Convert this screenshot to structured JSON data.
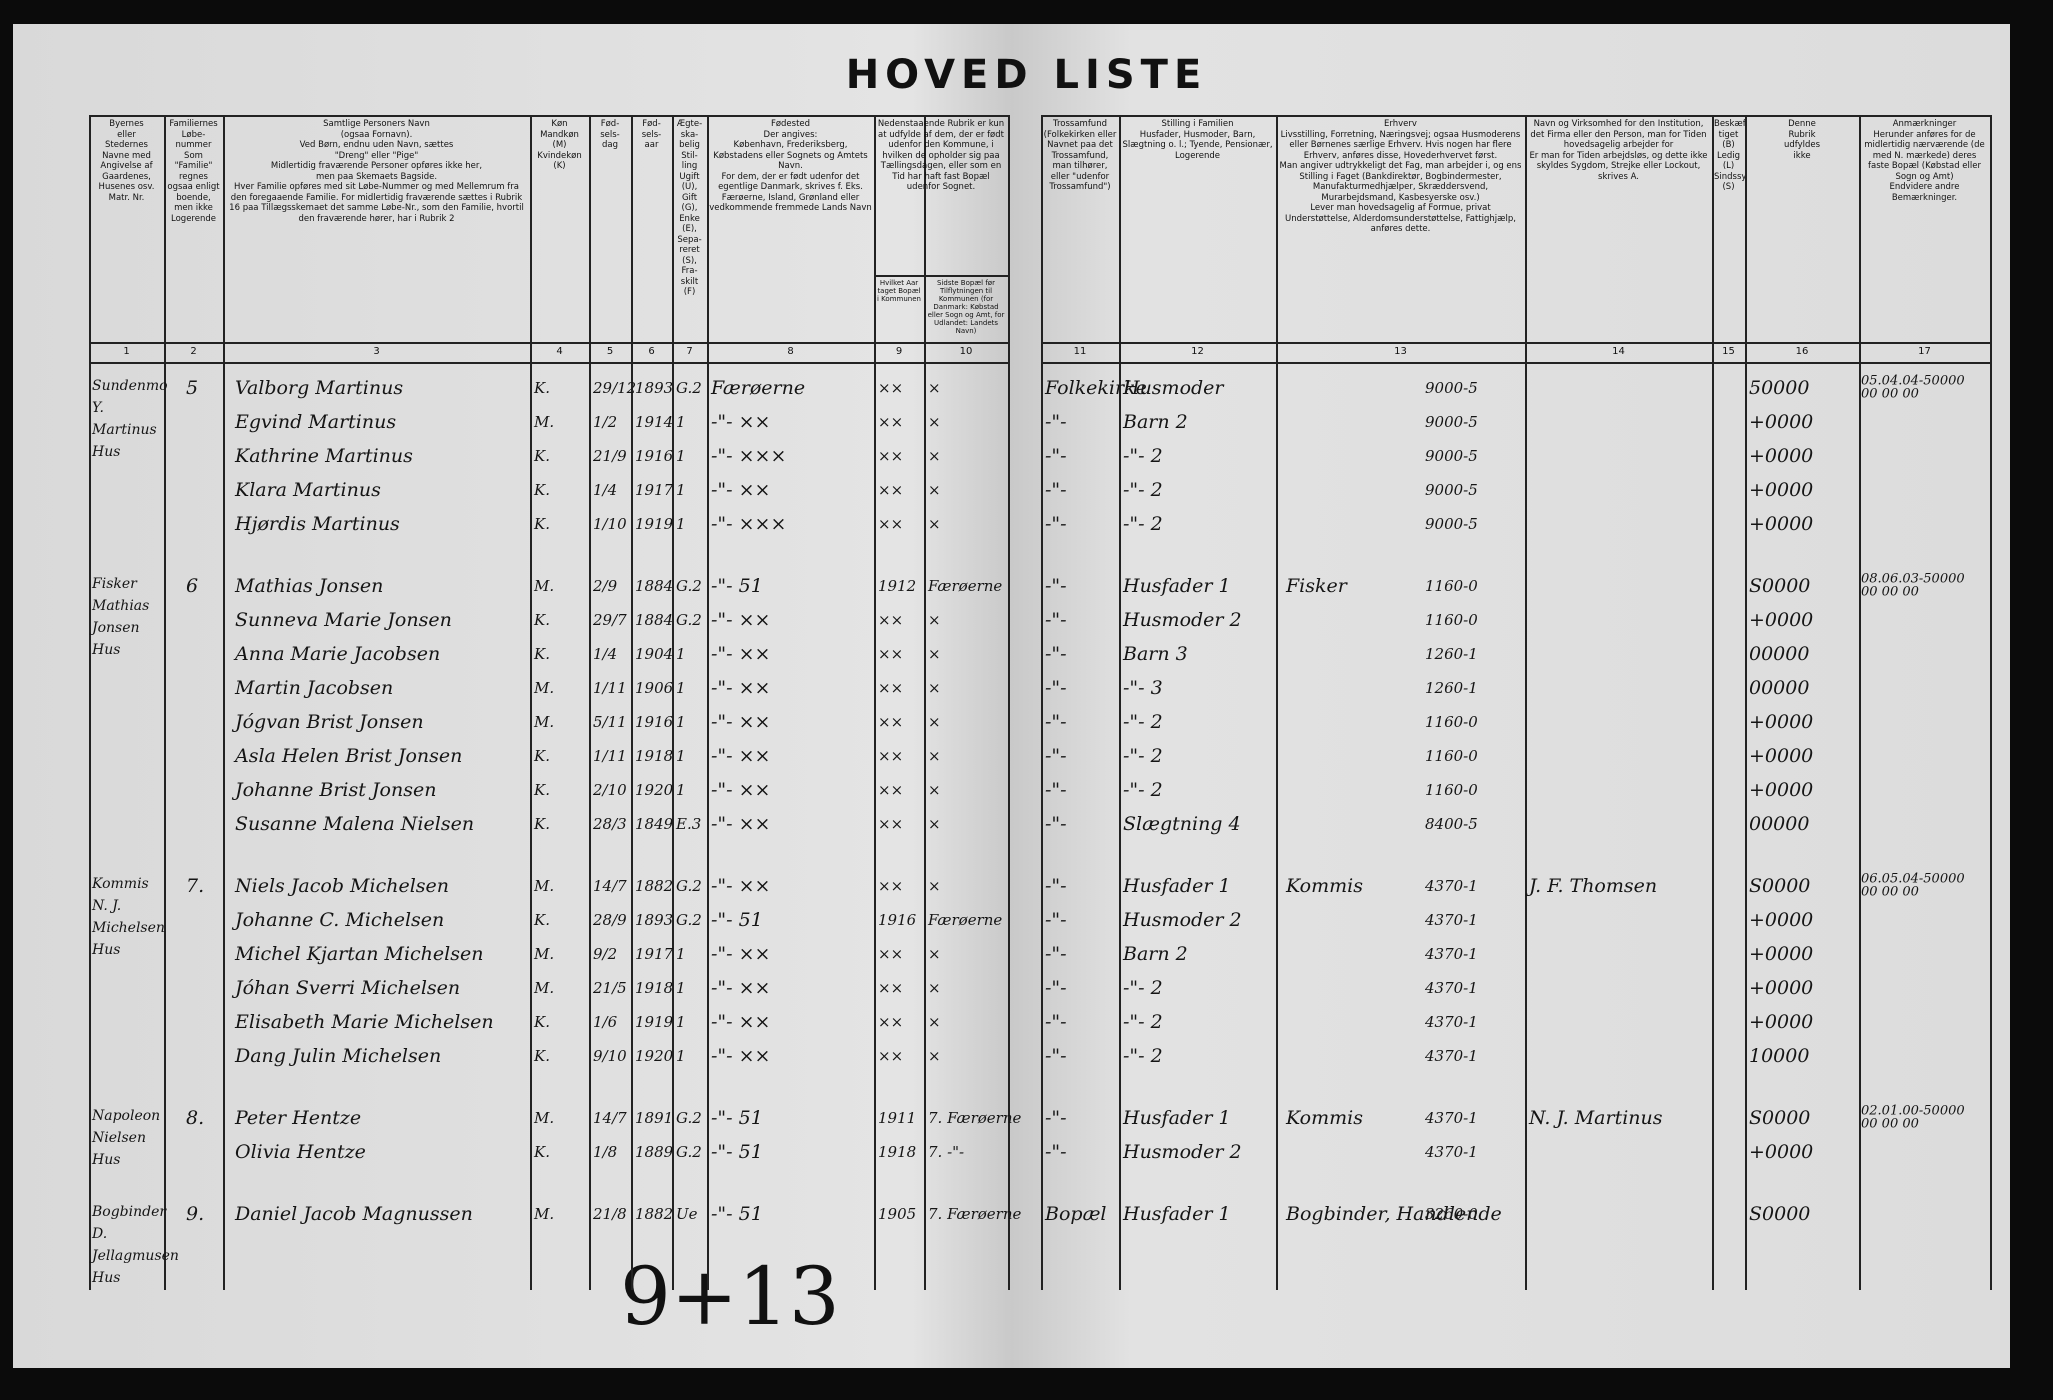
{
  "title": "HOVED LISTE",
  "columns": [
    {
      "number": "1",
      "header": "Byernes\neller\nStedernes\nNavne med\nAngivelse af\nGaardenes,\nHusenes osv.\nMatr. Nr."
    },
    {
      "number": "2",
      "header": "Familiernes\nLøbe-\nnummer\nSom \"Familie\" regnes ogsaa enligt boende, men ikke Logerende"
    },
    {
      "number": "3",
      "header": "Samtlige Personers Navn\n(ogsaa Fornavn).\nVed Børn, endnu uden Navn, sættes\n\"Dreng\" eller \"Pige\"\nMidlertidig fraværende Personer opføres ikke her,\nmen paa Skemaets Bagside.\nHver Familie opføres med sit Løbe-Nummer og med Mellemrum fra den foregaaende Familie. For midlertidig fraværende sættes i Rubrik 16 paa Tillægsskemaet det samme Løbe-Nr., som den Familie, hvortil den fraværende hører, har i Rubrik 2"
    },
    {
      "number": "4",
      "header": "Køn\nMandkøn\n(M)\nKvindekøn\n(K)"
    },
    {
      "number": "5",
      "header": "Fød-\nsels-\ndag"
    },
    {
      "number": "6",
      "header": "Fød-\nsels-\naar"
    },
    {
      "number": "7",
      "header": "Ægte-\nska-\nbelig\nStil-\nling\nUgift (U), Gift (G), Enke (E), Sepa-reret (S), Fra-skilt (F)"
    },
    {
      "number": "8",
      "header": "Fødested\nDer angives:\nKøbenhavn, Frederiksberg, Købstadens eller Sognets og Amtets Navn.\nFor dem, der er født udenfor det egentlige Danmark, skrives f. Eks. Færøerne, Island, Grønland eller vedkommende fremmede Lands Navn"
    },
    {
      "number": "9",
      "header": "Hvilket Aar taget Bopæl i Kommunen"
    },
    {
      "number": "10",
      "header": "Sidste Bopæl før Tilflytningen til Kommunen (for Danmark: Købstad eller Sogn og Amt, for Udlandet: Landets Navn)"
    },
    {
      "number": "11",
      "header": "Trossamfund\n(Folkekirken eller Navnet paa det Trossamfund, man tilhører, eller \"udenfor Trossamfund\")"
    },
    {
      "number": "12",
      "header": "Stilling i Familien\nHusfader, Husmoder, Barn, Slægtning o. l.; Tyende, Pensionær, Logerende"
    },
    {
      "number": "13",
      "header": "Erhverv\nLivsstilling, Forretning, Næringsvej; ogsaa Husmoderens eller Børnenes særlige Erhverv. Hvis nogen har flere Erhverv, anføres disse, Hovederhvervet først.\nMan angiver udtrykkeligt det Fag, man arbejder i, og ens Stilling i Faget (Bankdirektør, Bogbindermester, Manufakturmedhjælper, Skræddersvend, Murarbejdsmand, Kasbesyerske osv.)\nLever man hovedsagelig af Formue, privat Understøttelse, Alderdomsunderstøttelse, Fattighjælp, anføres dette."
    },
    {
      "number": "14",
      "header": "Navn og Virksomhed for den Institution, det Firma eller den Person, man for Tiden hovedsagelig arbejder for\nEr man for Tiden arbejdsløs, og dette ikke skyldes Sygdom, Strejke eller Lockout, skrives A."
    },
    {
      "number": "15",
      "header": "Beskæf-tiget (B)\nLedig (L)\nSindssyg (S)"
    },
    {
      "number": "16",
      "header": "Denne\nRubrik\nudfyldes\nikke"
    },
    {
      "number": "17",
      "header": "Anmærkninger\nHerunder anføres for de midlertidig nærværende (de med N. mærkede) deres faste Bopæl (Købstad eller Sogn og Amt)\nEndvidere andre Bemærkninger."
    }
  ],
  "columns_9_10_header": "Nedenstaaende Rubrik er kun at udfylde af dem, der er født udenfor den Kommune, i hvilken de opholder sig paa Tællingsdagen, eller som en Tid har haft fast Bopæl udenfor Sognet.",
  "households": [
    {
      "place": "Sundenmo\nY. Martinus\nHus",
      "number": "5",
      "persons": [
        {
          "name": "Valborg Martinus",
          "sex": "K.",
          "birth_day": "29/12",
          "birth_year": "1893",
          "marital": "G.2",
          "birthplace": "Færøerne",
          "year_moved": "××",
          "last_residence": "×",
          "faith": "Folkekirke",
          "family_role": "Husmoder",
          "income": "9000-5",
          "code": "50000",
          "notes": "05.04.04-50000\n00 00 00"
        },
        {
          "name": "Egvind Martinus",
          "sex": "M.",
          "birth_day": "1/2",
          "birth_year": "1914",
          "marital": "1",
          "birthplace": "-\"- ××",
          "year_moved": "××",
          "last_residence": "×",
          "faith": "-\"-",
          "family_role": "Barn 2",
          "income": "9000-5",
          "code": "+0000"
        },
        {
          "name": "Kathrine Martinus",
          "sex": "K.",
          "birth_day": "21/9",
          "birth_year": "1916",
          "marital": "1",
          "birthplace": "-\"- ×××",
          "year_moved": "××",
          "last_residence": "×",
          "faith": "-\"-",
          "family_role": "-\"- 2",
          "income": "9000-5",
          "code": "+0000"
        },
        {
          "name": "Klara Martinus",
          "sex": "K.",
          "birth_day": "1/4",
          "birth_year": "1917",
          "marital": "1",
          "birthplace": "-\"- ××",
          "year_moved": "××",
          "last_residence": "×",
          "faith": "-\"-",
          "family_role": "-\"- 2",
          "income": "9000-5",
          "code": "+0000"
        },
        {
          "name": "Hjørdis Martinus",
          "sex": "K.",
          "birth_day": "1/10",
          "birth_year": "1919",
          "marital": "1",
          "birthplace": "-\"- ×××",
          "year_moved": "××",
          "last_residence": "×",
          "faith": "-\"-",
          "family_role": "-\"- 2",
          "income": "9000-5",
          "code": "+0000"
        }
      ]
    },
    {
      "place": "Fisker Mathias\nJonsen Hus",
      "number": "6",
      "persons": [
        {
          "name": "Mathias Jonsen",
          "sex": "M.",
          "birth_day": "2/9",
          "birth_year": "1884",
          "marital": "G.2",
          "birthplace": "-\"- 51",
          "year_moved": "1912",
          "last_residence": "Færøerne",
          "faith": "-\"-",
          "family_role": "Husfader 1",
          "occupation": "Fisker",
          "income": "1160-0",
          "code": "S0000",
          "notes": "08.06.03-50000\n00 00 00"
        },
        {
          "name": "Sunneva Marie Jonsen",
          "sex": "K.",
          "birth_day": "29/7",
          "birth_year": "1884",
          "marital": "G.2",
          "birthplace": "-\"- ××",
          "year_moved": "××",
          "last_residence": "×",
          "faith": "-\"-",
          "family_role": "Husmoder 2",
          "income": "1160-0",
          "code": "+0000"
        },
        {
          "name": "Anna Marie Jacobsen",
          "sex": "K.",
          "birth_day": "1/4",
          "birth_year": "1904",
          "marital": "1",
          "birthplace": "-\"- ××",
          "year_moved": "××",
          "last_residence": "×",
          "faith": "-\"-",
          "family_role": "Barn 3",
          "income": "1260-1",
          "code": "00000"
        },
        {
          "name": "Martin Jacobsen",
          "sex": "M.",
          "birth_day": "1/11",
          "birth_year": "1906",
          "marital": "1",
          "birthplace": "-\"- ××",
          "year_moved": "××",
          "last_residence": "×",
          "faith": "-\"-",
          "family_role": "-\"- 3",
          "income": "1260-1",
          "code": "00000"
        },
        {
          "name": "Jógvan Brist Jonsen",
          "sex": "M.",
          "birth_day": "5/11",
          "birth_year": "1916",
          "marital": "1",
          "birthplace": "-\"- ××",
          "year_moved": "××",
          "last_residence": "×",
          "faith": "-\"-",
          "family_role": "-\"- 2",
          "income": "1160-0",
          "code": "+0000"
        },
        {
          "name": "Asla Helen Brist Jonsen",
          "sex": "K.",
          "birth_day": "1/11",
          "birth_year": "1918",
          "marital": "1",
          "birthplace": "-\"- ××",
          "year_moved": "××",
          "last_residence": "×",
          "faith": "-\"-",
          "family_role": "-\"- 2",
          "income": "1160-0",
          "code": "+0000"
        },
        {
          "name": "Johanne Brist Jonsen",
          "sex": "K.",
          "birth_day": "2/10",
          "birth_year": "1920",
          "marital": "1",
          "birthplace": "-\"- ××",
          "year_moved": "××",
          "last_residence": "×",
          "faith": "-\"-",
          "family_role": "-\"- 2",
          "income": "1160-0",
          "code": "+0000"
        },
        {
          "name": "Susanne Malena Nielsen",
          "sex": "K.",
          "birth_day": "28/3",
          "birth_year": "1849",
          "marital": "E.3",
          "birthplace": "-\"- ××",
          "year_moved": "××",
          "last_residence": "×",
          "faith": "-\"-",
          "family_role": "Slægtning 4",
          "income": "8400-5",
          "code": "00000"
        }
      ]
    },
    {
      "place": "Kommis N. J.\nMichelsen Hus",
      "number": "7.",
      "persons": [
        {
          "name": "Niels Jacob Michelsen",
          "sex": "M.",
          "birth_day": "14/7",
          "birth_year": "1882",
          "marital": "G.2",
          "birthplace": "-\"- ××",
          "year_moved": "××",
          "last_residence": "×",
          "faith": "-\"-",
          "family_role": "Husfader 1",
          "occupation": "Kommis",
          "income": "4370-1",
          "employer": "J. F. Thomsen",
          "code": "S0000",
          "notes": "06.05.04-50000\n00 00 00"
        },
        {
          "name": "Johanne C. Michelsen",
          "sex": "K.",
          "birth_day": "28/9",
          "birth_year": "1893",
          "marital": "G.2",
          "birthplace": "-\"- 51",
          "year_moved": "1916",
          "last_residence": "Færøerne",
          "faith": "-\"-",
          "family_role": "Husmoder 2",
          "income": "4370-1",
          "code": "+0000"
        },
        {
          "name": "Michel Kjartan Michelsen",
          "sex": "M.",
          "birth_day": "9/2",
          "birth_year": "1917",
          "marital": "1",
          "birthplace": "-\"- ××",
          "year_moved": "××",
          "last_residence": "×",
          "faith": "-\"-",
          "family_role": "Barn 2",
          "income": "4370-1",
          "code": "+0000"
        },
        {
          "name": "Jóhan Sverri Michelsen",
          "sex": "M.",
          "birth_day": "21/5",
          "birth_year": "1918",
          "marital": "1",
          "birthplace": "-\"- ××",
          "year_moved": "××",
          "last_residence": "×",
          "faith": "-\"-",
          "family_role": "-\"- 2",
          "income": "4370-1",
          "code": "+0000"
        },
        {
          "name": "Elisabeth Marie Michelsen",
          "sex": "K.",
          "birth_day": "1/6",
          "birth_year": "1919",
          "marital": "1",
          "birthplace": "-\"- ××",
          "year_moved": "××",
          "last_residence": "×",
          "faith": "-\"-",
          "family_role": "-\"- 2",
          "income": "4370-1",
          "code": "+0000"
        },
        {
          "name": "Dang Julin Michelsen",
          "sex": "K.",
          "birth_day": "9/10",
          "birth_year": "1920",
          "marital": "1",
          "birthplace": "-\"- ××",
          "year_moved": "××",
          "last_residence": "×",
          "faith": "-\"-",
          "family_role": "-\"- 2",
          "income": "4370-1",
          "code": "10000"
        }
      ]
    },
    {
      "place": "Napoleon Nielsen\nHus",
      "number": "8.",
      "persons": [
        {
          "name": "Peter Hentze",
          "sex": "M.",
          "birth_day": "14/7",
          "birth_year": "1891",
          "marital": "G.2",
          "birthplace": "-\"- 51",
          "year_moved": "1911",
          "last_residence": "7. Færøerne",
          "faith": "-\"-",
          "family_role": "Husfader 1",
          "occupation": "Kommis",
          "income": "4370-1",
          "employer": "N. J. Martinus",
          "code": "S0000",
          "notes": "02.01.00-50000\n00 00 00"
        },
        {
          "name": "Olivia Hentze",
          "sex": "K.",
          "birth_day": "1/8",
          "birth_year": "1889",
          "marital": "G.2",
          "birthplace": "-\"- 51",
          "year_moved": "1918",
          "last_residence": "7. -\"-",
          "faith": "-\"-",
          "family_role": "Husmoder 2",
          "income": "4370-1",
          "code": "+0000"
        }
      ]
    },
    {
      "place": "Bogbinder\nD. Jellagmusen\nHus",
      "number": "9.",
      "persons": [
        {
          "name": "Daniel Jacob Magnussen",
          "sex": "M.",
          "birth_day": "21/8",
          "birth_year": "1882",
          "marital": "Ue",
          "birthplace": "-\"- 51",
          "year_moved": "1905",
          "last_residence": "7. Færøerne",
          "faith": "Bopæl",
          "family_role": "Husfader 1",
          "occupation": "Bogbinder, Handlende",
          "income": "3260-0",
          "code": "S0000"
        }
      ]
    }
  ],
  "margin_note": "9+13"
}
